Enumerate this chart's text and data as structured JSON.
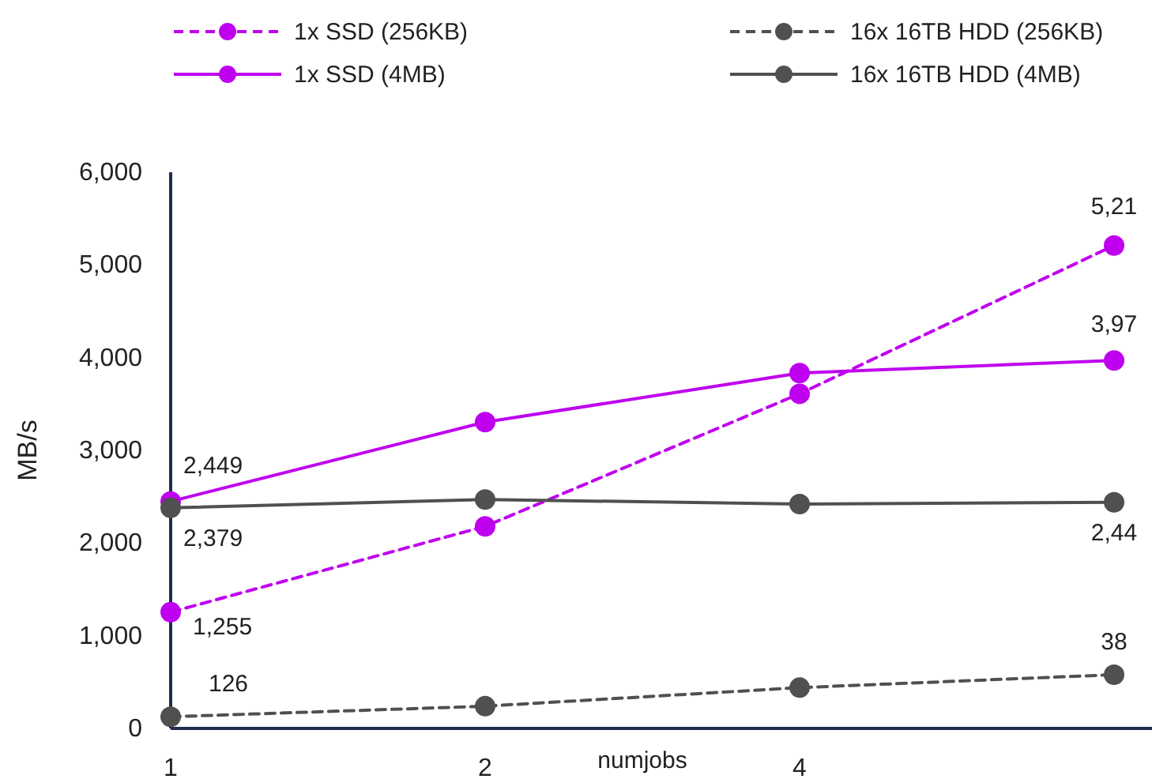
{
  "chart_data": {
    "type": "line",
    "xlabel": "numjobs",
    "ylabel": "MB/s",
    "categories": [
      "1",
      "2",
      "4",
      null
    ],
    "ylim": [
      0,
      6000
    ],
    "yticks": [
      {
        "value": 0,
        "label": "0"
      },
      {
        "value": 1000,
        "label": "1,000"
      },
      {
        "value": 2000,
        "label": "2,000"
      },
      {
        "value": 3000,
        "label": "3,000"
      },
      {
        "value": 4000,
        "label": "4,000"
      },
      {
        "value": 5000,
        "label": "5,000"
      },
      {
        "value": 6000,
        "label": "6,000"
      }
    ],
    "grid": false,
    "legend": "top",
    "marker": "circle",
    "series": [
      {
        "name": "1x SSD (256KB)",
        "color": "#bf00ef",
        "line_style": "dashed",
        "values": [
          1255,
          2180,
          3610,
          5210
        ],
        "value_labels": [
          "1,255",
          null,
          null,
          null
        ]
      },
      {
        "name": "1x SSD (4MB)",
        "color": "#bf00ef",
        "line_style": "solid",
        "values": [
          2449,
          3305,
          3833,
          3970
        ],
        "value_labels": [
          "2,449",
          null,
          null,
          null
        ]
      },
      {
        "name": "16x 16TB HDD (256KB)",
        "color": "#505050",
        "line_style": "dashed",
        "values": [
          126,
          240,
          440,
          580
        ],
        "value_labels": [
          "126",
          null,
          null,
          null
        ]
      },
      {
        "name": "16x 16TB HDD (4MB)",
        "color": "#505050",
        "line_style": "solid",
        "values": [
          2379,
          2470,
          2420,
          2440
        ],
        "value_labels": [
          "2,379",
          null,
          null,
          null
        ]
      }
    ],
    "annotations": [
      "5,21",
      "3,97",
      "38",
      "2,44"
    ]
  }
}
